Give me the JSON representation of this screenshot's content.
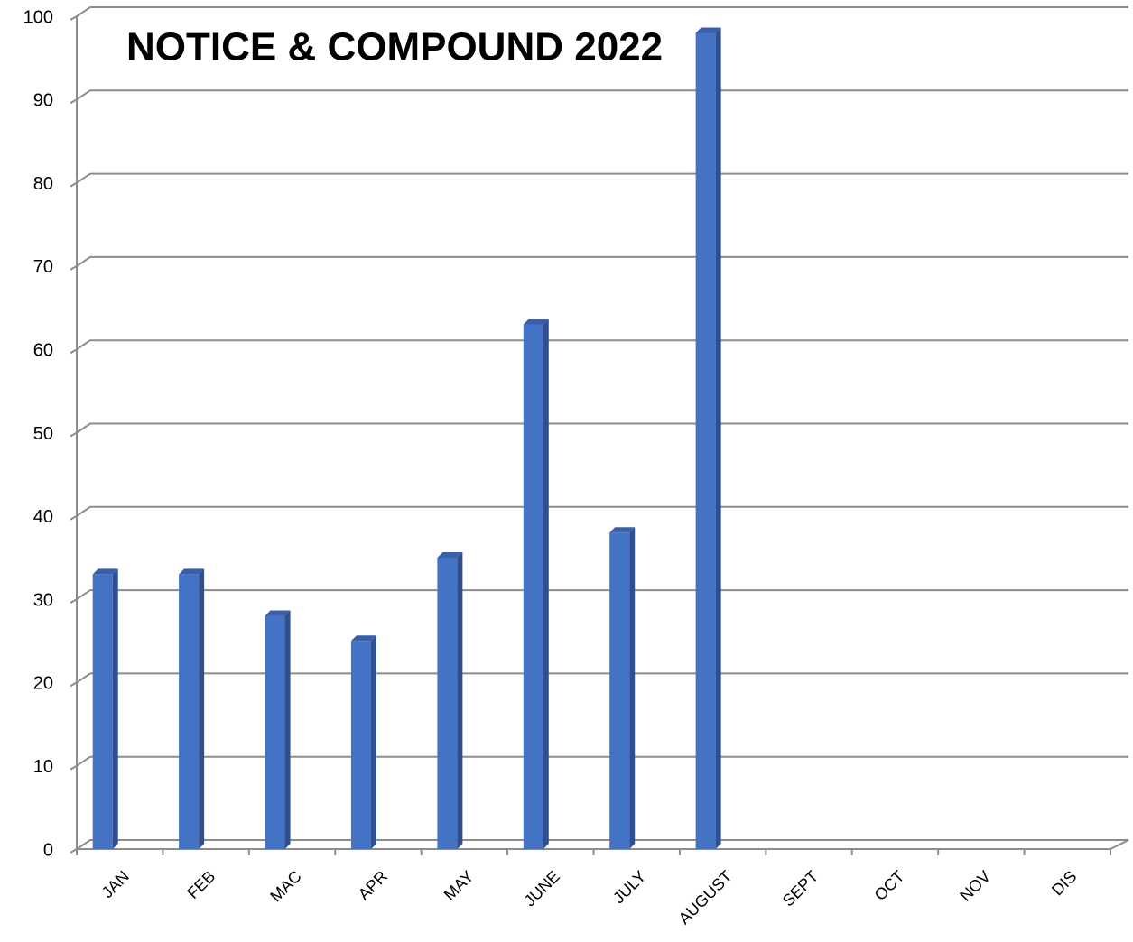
{
  "chart_data": {
    "type": "bar",
    "title": "NOTICE & COMPOUND 2022",
    "categories": [
      "JAN",
      "FEB",
      "MAC",
      "APR",
      "MAY",
      "JUNE",
      "JULY",
      "AUGUST",
      "SEPT",
      "OCT",
      "NOV",
      "DIS"
    ],
    "values": [
      33,
      33,
      28,
      25,
      35,
      63,
      38,
      98,
      null,
      null,
      null,
      null
    ],
    "color": "#4472c4",
    "ylim": [
      0,
      100
    ],
    "yticks": [
      0,
      10,
      20,
      30,
      40,
      50,
      60,
      70,
      80,
      90,
      100
    ],
    "grid": true
  }
}
